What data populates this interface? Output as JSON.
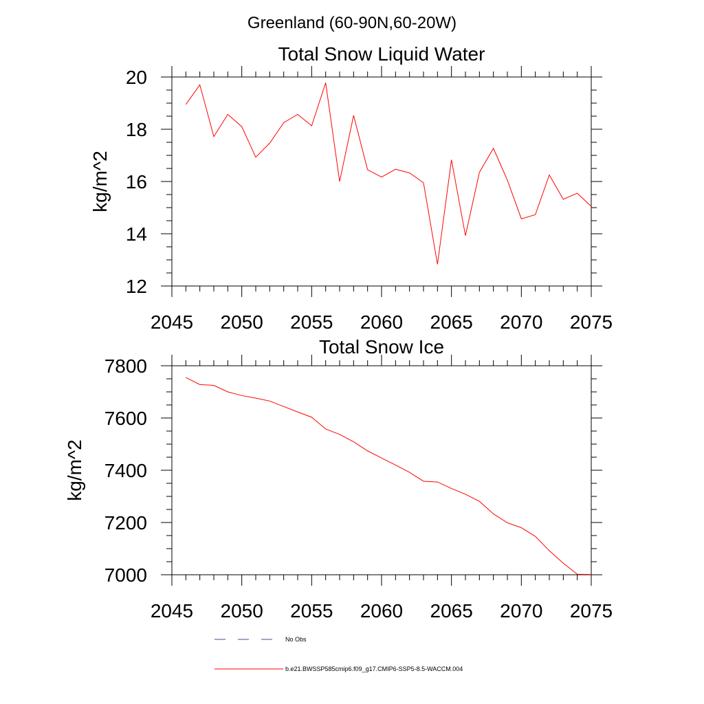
{
  "figure_title": "Greenland (60-90N,60-20W)",
  "legend": [
    {
      "label": "No Obs",
      "color": "#4a4a8a",
      "style": "dashed"
    },
    {
      "label": "b.e21.BWSSP585cmip6.f09_g17.CMIP6-SSP5-8.5-WACCM.004",
      "color": "#ff0000",
      "style": "solid"
    }
  ],
  "chart_data": [
    {
      "type": "line",
      "title": "Total Snow Liquid Water",
      "xlabel": "",
      "ylabel": "kg/m^2",
      "xlim": [
        2045,
        2075
      ],
      "ylim": [
        12,
        20
      ],
      "xticks": [
        2045,
        2050,
        2055,
        2060,
        2065,
        2070,
        2075
      ],
      "yticks": [
        12,
        14,
        16,
        18,
        20
      ],
      "grid": false,
      "series": [
        {
          "name": "b.e21.BWSSP585cmip6.f09_g17.CMIP6-SSP5-8.5-WACCM.004",
          "color": "#ff0000",
          "x": [
            2046,
            2047,
            2048,
            2049,
            2050,
            2051,
            2052,
            2053,
            2054,
            2055,
            2056,
            2057,
            2058,
            2059,
            2060,
            2061,
            2062,
            2063,
            2064,
            2065,
            2066,
            2067,
            2068,
            2069,
            2070,
            2071,
            2072,
            2073,
            2074,
            2075
          ],
          "y": [
            18.95,
            19.7,
            17.72,
            18.57,
            18.1,
            16.93,
            17.47,
            18.25,
            18.57,
            18.13,
            19.78,
            16.0,
            18.53,
            16.45,
            16.17,
            16.47,
            16.33,
            15.95,
            12.83,
            16.83,
            13.93,
            16.35,
            17.27,
            16.05,
            14.57,
            14.73,
            16.25,
            15.32,
            15.55,
            15.05
          ]
        }
      ]
    },
    {
      "type": "line",
      "title": "Total Snow Ice",
      "xlabel": "",
      "ylabel": "kg/m^2",
      "xlim": [
        2045,
        2075
      ],
      "ylim": [
        7000,
        7800
      ],
      "xticks": [
        2045,
        2050,
        2055,
        2060,
        2065,
        2070,
        2075
      ],
      "yticks": [
        7000,
        7200,
        7400,
        7600,
        7800
      ],
      "grid": false,
      "series": [
        {
          "name": "b.e21.BWSSP585cmip6.f09_g17.CMIP6-SSP5-8.5-WACCM.004",
          "color": "#ff0000",
          "x": [
            2046,
            2047,
            2048,
            2049,
            2050,
            2051,
            2052,
            2053,
            2054,
            2055,
            2056,
            2057,
            2058,
            2059,
            2060,
            2061,
            2062,
            2063,
            2064,
            2065,
            2066,
            2067,
            2068,
            2069,
            2070,
            2071,
            2072,
            2073,
            2074,
            2075
          ],
          "y": [
            7755,
            7728,
            7725,
            7700,
            7686,
            7676,
            7665,
            7644,
            7623,
            7603,
            7558,
            7537,
            7509,
            7474,
            7447,
            7420,
            7392,
            7358,
            7355,
            7330,
            7308,
            7281,
            7233,
            7199,
            7180,
            7147,
            7092,
            7044,
            7002,
            7001
          ]
        }
      ]
    }
  ]
}
